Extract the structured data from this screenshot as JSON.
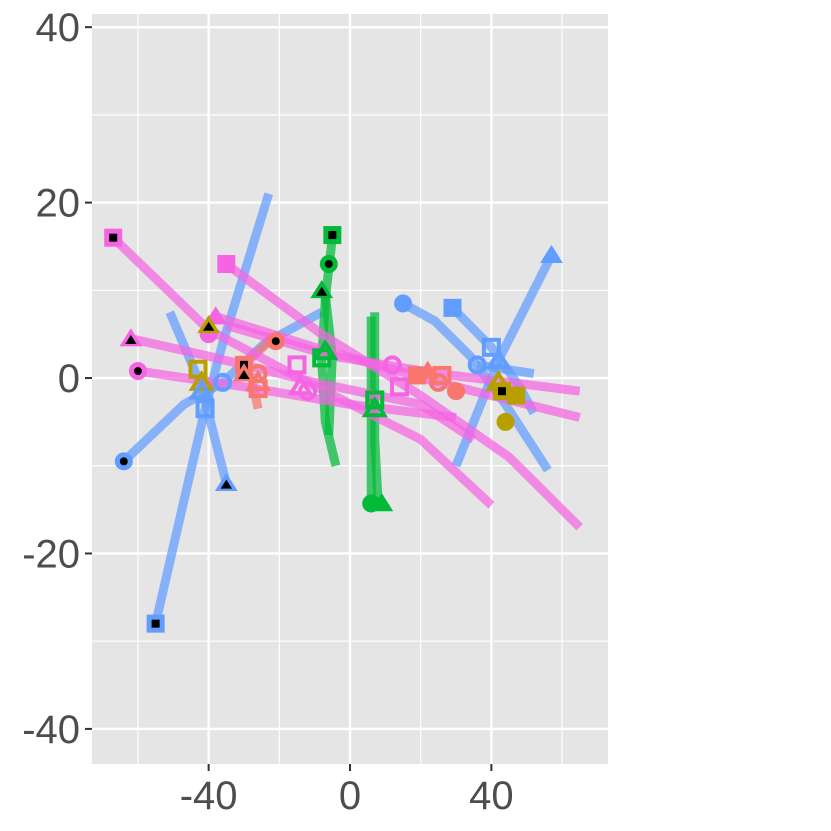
{
  "chart_data": {
    "type": "line",
    "title": "",
    "xlabel": "",
    "ylabel": "",
    "xlim": [
      -73,
      73
    ],
    "ylim": [
      -44,
      41.5
    ],
    "x_ticks": [
      -40,
      0,
      40
    ],
    "y_ticks": [
      -40,
      -20,
      0,
      20,
      40
    ],
    "x_tick_labels": [
      "-40",
      "0",
      "40"
    ],
    "y_tick_labels": [
      "-40",
      "-20",
      "0",
      "20",
      "40"
    ],
    "grid": true,
    "legend": "none",
    "background": "#E5E5E5",
    "paths": [
      {
        "color": "#619CFF",
        "points": [
          [
            -55,
            -28
          ],
          [
            -41,
            -3.5
          ]
        ]
      },
      {
        "color": "#619CFF",
        "points": [
          [
            -41,
            -3.5
          ],
          [
            -36,
            4
          ],
          [
            -23,
            21
          ]
        ]
      },
      {
        "color": "#619CFF",
        "points": [
          [
            -35,
            -12
          ],
          [
            -42,
            -1
          ],
          [
            -51,
            7.5
          ]
        ]
      },
      {
        "color": "#619CFF",
        "points": [
          [
            -64,
            -9.5
          ],
          [
            -47,
            -3
          ],
          [
            -36,
            -0.5
          ],
          [
            -24,
            4
          ],
          [
            -8,
            7.5
          ]
        ]
      },
      {
        "color": "#619CFF",
        "points": [
          [
            15,
            8.5
          ],
          [
            24,
            6.5
          ],
          [
            34,
            2.5
          ],
          [
            44,
            -3
          ],
          [
            56,
            -10.5
          ]
        ]
      },
      {
        "color": "#619CFF",
        "points": [
          [
            29,
            8
          ],
          [
            40,
            3.5
          ],
          [
            48,
            -1
          ],
          [
            52,
            -4
          ]
        ]
      },
      {
        "color": "#619CFF",
        "points": [
          [
            57,
            14
          ],
          [
            42,
            2
          ],
          [
            30,
            -10
          ]
        ]
      },
      {
        "color": "#619CFF",
        "points": [
          [
            36,
            1.5
          ],
          [
            52,
            0.5
          ]
        ]
      },
      {
        "color": "#F8766D",
        "points": [
          [
            -28,
            0.5
          ],
          [
            -26,
            -3.5
          ]
        ]
      },
      {
        "color": "#F8766D",
        "points": [
          [
            -30,
            1.5
          ],
          [
            -22,
            4.5
          ]
        ]
      },
      {
        "color": "#00BA38",
        "points": [
          [
            -7,
            9.5
          ],
          [
            -5,
            2.5
          ],
          [
            -6,
            -6.5
          ]
        ]
      },
      {
        "color": "#00BA38",
        "points": [
          [
            -5,
            16
          ],
          [
            -7,
            9
          ],
          [
            -8,
            2
          ],
          [
            -7,
            -5
          ],
          [
            -4,
            -10
          ]
        ]
      },
      {
        "color": "#00BA38",
        "points": [
          [
            7,
            7.5
          ],
          [
            7,
            0
          ],
          [
            7,
            -7
          ],
          [
            8,
            -14.5
          ]
        ]
      },
      {
        "color": "#00BA38",
        "points": [
          [
            6,
            7
          ],
          [
            6,
            -2
          ],
          [
            6,
            -14
          ]
        ]
      },
      {
        "color": "#F564E3",
        "points": [
          [
            -67,
            16
          ],
          [
            -40,
            5.5
          ],
          [
            -12,
            -0.5
          ],
          [
            20,
            -7
          ],
          [
            40,
            -14.5
          ]
        ]
      },
      {
        "color": "#F564E3",
        "points": [
          [
            -35,
            13
          ],
          [
            -8,
            5
          ],
          [
            20,
            -2
          ],
          [
            45,
            -9
          ],
          [
            65,
            -17
          ]
        ]
      },
      {
        "color": "#F564E3",
        "points": [
          [
            -62,
            4.5
          ],
          [
            -40,
            2.5
          ],
          [
            -10,
            -0.5
          ],
          [
            20,
            -3
          ],
          [
            35,
            -7
          ]
        ]
      },
      {
        "color": "#F564E3",
        "points": [
          [
            -60,
            0.8
          ],
          [
            -30,
            -1
          ],
          [
            0,
            -3
          ],
          [
            30,
            -4.5
          ]
        ]
      },
      {
        "color": "#F564E3",
        "points": [
          [
            -38,
            7
          ],
          [
            -10,
            3.5
          ],
          [
            25,
            -0.5
          ],
          [
            65,
            -4.5
          ]
        ]
      },
      {
        "color": "#F564E3",
        "points": [
          [
            -35,
            6
          ],
          [
            -5,
            2.5
          ],
          [
            25,
            0.5
          ],
          [
            65,
            -1.5
          ]
        ]
      }
    ],
    "points": [
      {
        "x": -67,
        "y": 16,
        "shape": "square",
        "color": "#F564E3",
        "inner": "black"
      },
      {
        "x": -35,
        "y": 13,
        "shape": "square",
        "color": "#F564E3",
        "inner": "none"
      },
      {
        "x": -62,
        "y": 4.5,
        "shape": "triangle",
        "color": "#F564E3",
        "inner": "black"
      },
      {
        "x": -60,
        "y": 0.8,
        "shape": "circle",
        "color": "#F564E3",
        "inner": "black"
      },
      {
        "x": -38,
        "y": 7,
        "shape": "triangle",
        "color": "#F564E3",
        "inner": "none"
      },
      {
        "x": -40,
        "y": 5,
        "shape": "circle",
        "color": "#F564E3",
        "inner": "none"
      },
      {
        "x": -15,
        "y": 1.5,
        "shape": "square",
        "color": "#F564E3",
        "inner": "hollow"
      },
      {
        "x": -14,
        "y": -1,
        "shape": "triangle",
        "color": "#F564E3",
        "inner": "hollow"
      },
      {
        "x": -12,
        "y": -1.5,
        "shape": "circle",
        "color": "#F564E3",
        "inner": "hollow"
      },
      {
        "x": 12,
        "y": 1.5,
        "shape": "circle",
        "color": "#F564E3",
        "inner": "hollow"
      },
      {
        "x": 14,
        "y": -1,
        "shape": "square",
        "color": "#F564E3",
        "inner": "hollow"
      },
      {
        "x": -40,
        "y": 6,
        "shape": "triangle",
        "color": "#B79F00",
        "inner": "black"
      },
      {
        "x": -43,
        "y": 1,
        "shape": "square",
        "color": "#B79F00",
        "inner": "hollow"
      },
      {
        "x": -42,
        "y": -0.5,
        "shape": "triangle",
        "color": "#B79F00",
        "inner": "hollow"
      },
      {
        "x": 42,
        "y": -0.5,
        "shape": "triangle",
        "color": "#B79F00",
        "inner": "hollow"
      },
      {
        "x": 43,
        "y": -1.5,
        "shape": "square",
        "color": "#B79F00",
        "inner": "black"
      },
      {
        "x": 47,
        "y": -2,
        "shape": "square",
        "color": "#B79F00",
        "inner": "none"
      },
      {
        "x": 44,
        "y": -5,
        "shape": "circle",
        "color": "#B79F00",
        "inner": "none"
      },
      {
        "x": -55,
        "y": -28,
        "shape": "square",
        "color": "#619CFF",
        "inner": "black"
      },
      {
        "x": -64,
        "y": -9.5,
        "shape": "circle",
        "color": "#619CFF",
        "inner": "black"
      },
      {
        "x": -35,
        "y": -12,
        "shape": "triangle",
        "color": "#619CFF",
        "inner": "black"
      },
      {
        "x": -42,
        "y": -1.5,
        "shape": "triangle",
        "color": "#619CFF",
        "inner": "hollow"
      },
      {
        "x": -41,
        "y": -3.5,
        "shape": "square",
        "color": "#619CFF",
        "inner": "hollow"
      },
      {
        "x": -36,
        "y": -0.5,
        "shape": "circle",
        "color": "#619CFF",
        "inner": "hollow"
      },
      {
        "x": 15,
        "y": 8.5,
        "shape": "circle",
        "color": "#619CFF",
        "inner": "none"
      },
      {
        "x": 29,
        "y": 8,
        "shape": "square",
        "color": "#619CFF",
        "inner": "none"
      },
      {
        "x": 57,
        "y": 14,
        "shape": "triangle",
        "color": "#619CFF",
        "inner": "none"
      },
      {
        "x": 36,
        "y": 1.5,
        "shape": "circle",
        "color": "#619CFF",
        "inner": "hollow"
      },
      {
        "x": 40,
        "y": 3.5,
        "shape": "square",
        "color": "#619CFF",
        "inner": "hollow"
      },
      {
        "x": 42,
        "y": 2,
        "shape": "triangle",
        "color": "#619CFF",
        "inner": "hollow"
      },
      {
        "x": -30,
        "y": 1.5,
        "shape": "square",
        "color": "#F8766D",
        "inner": "black"
      },
      {
        "x": -30,
        "y": 0.5,
        "shape": "triangle",
        "color": "#F8766D",
        "inner": "black"
      },
      {
        "x": -21,
        "y": 4.2,
        "shape": "circle",
        "color": "#F8766D",
        "inner": "black"
      },
      {
        "x": -26,
        "y": 0.5,
        "shape": "circle",
        "color": "#F8766D",
        "inner": "hollow"
      },
      {
        "x": -26,
        "y": -0.5,
        "shape": "triangle",
        "color": "#F8766D",
        "inner": "hollow"
      },
      {
        "x": -26,
        "y": -1.2,
        "shape": "square",
        "color": "#F8766D",
        "inner": "hollow"
      },
      {
        "x": 19,
        "y": 0.3,
        "shape": "square",
        "color": "#F8766D",
        "inner": "none"
      },
      {
        "x": 22,
        "y": 0.8,
        "shape": "triangle",
        "color": "#F8766D",
        "inner": "none"
      },
      {
        "x": 26,
        "y": 0.3,
        "shape": "square",
        "color": "#F8766D",
        "inner": "hollow"
      },
      {
        "x": 25,
        "y": -0.5,
        "shape": "circle",
        "color": "#F8766D",
        "inner": "hollow"
      },
      {
        "x": 30,
        "y": -1.5,
        "shape": "circle",
        "color": "#F8766D",
        "inner": "none"
      },
      {
        "x": -5,
        "y": 16.3,
        "shape": "square",
        "color": "#00BA38",
        "inner": "black"
      },
      {
        "x": -6,
        "y": 13,
        "shape": "circle",
        "color": "#00BA38",
        "inner": "black"
      },
      {
        "x": -8,
        "y": 10,
        "shape": "triangle",
        "color": "#00BA38",
        "inner": "black"
      },
      {
        "x": -7,
        "y": 3,
        "shape": "triangle",
        "color": "#00BA38",
        "inner": "hollow"
      },
      {
        "x": -8,
        "y": 2.3,
        "shape": "square",
        "color": "#00BA38",
        "inner": "hollow"
      },
      {
        "x": 7,
        "y": -2.5,
        "shape": "square",
        "color": "#00BA38",
        "inner": "hollow"
      },
      {
        "x": 7,
        "y": -3.5,
        "shape": "triangle",
        "color": "#00BA38",
        "inner": "hollow"
      },
      {
        "x": 6,
        "y": -14.3,
        "shape": "circle",
        "color": "#00BA38",
        "inner": "none"
      },
      {
        "x": 9,
        "y": -14.3,
        "shape": "triangle",
        "color": "#00BA38",
        "inner": "none"
      }
    ]
  }
}
